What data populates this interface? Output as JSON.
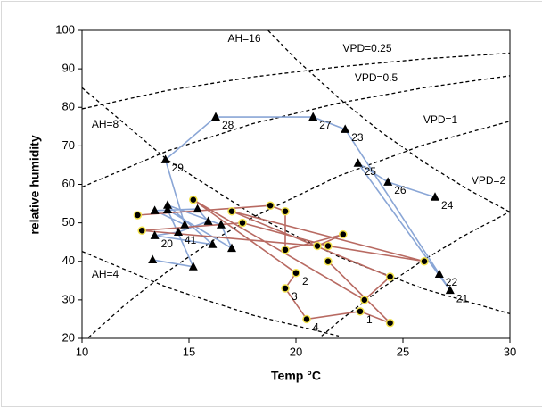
{
  "chart_data": {
    "type": "scatter",
    "x_label": "Temp °C",
    "y_label": "relative humidity",
    "xlim": [
      10,
      30
    ],
    "xticks": [
      10,
      15,
      20,
      25,
      30
    ],
    "ylim": [
      20,
      100
    ],
    "yticks": [
      20,
      30,
      40,
      50,
      60,
      70,
      80,
      90,
      100
    ],
    "grid": false,
    "curves": [
      {
        "name": "AH=16",
        "x": [
          18.7,
          20,
          22,
          24,
          26,
          28,
          30
        ],
        "values": [
          99.96,
          92.5,
          82.4,
          73.5,
          65.7,
          58.8,
          52.8
        ]
      },
      {
        "name": "VPD=0.25",
        "x": [
          10,
          14,
          18,
          22,
          26,
          30
        ],
        "values": [
          79.6,
          84.4,
          87.9,
          90.5,
          92.6,
          94.1
        ]
      },
      {
        "name": "VPD=0.5",
        "x": [
          10,
          14,
          18,
          22,
          26,
          30
        ],
        "values": [
          59.3,
          68.7,
          75.8,
          81.1,
          85.1,
          88.2
        ]
      },
      {
        "name": "AH=8",
        "x": [
          10,
          14,
          18,
          22,
          26,
          30
        ],
        "values": [
          85.1,
          66.3,
          52.1,
          41.2,
          32.8,
          26.4
        ]
      },
      {
        "name": "VPD=1",
        "x": [
          10.3,
          12,
          14,
          16,
          18,
          22,
          26,
          30
        ],
        "values": [
          20.2,
          28.7,
          37.4,
          45,
          51.5,
          62.2,
          70.3,
          76.4
        ]
      },
      {
        "name": "VPD=2",
        "x": [
          21.2,
          22,
          24,
          26,
          28,
          30
        ],
        "values": [
          20.6,
          24.4,
          33,
          40.5,
          47.1,
          52.9
        ]
      },
      {
        "name": "AH=4",
        "x": [
          10,
          14,
          18,
          22
        ],
        "values": [
          42.6,
          33.2,
          26,
          20.6
        ]
      }
    ],
    "series": [
      {
        "color": "#8aa6d6",
        "marker": "triangle",
        "marker_color": "#000000",
        "x": [
          13.3,
          15.2,
          14.0,
          17.0,
          16.5,
          14.0,
          16.1,
          13.4,
          14.5,
          15.9,
          15.4,
          13.4,
          14.8,
          13.9,
          16.25,
          20.8,
          22.3,
          26.7,
          27.2,
          22.9,
          24.3,
          26.5
        ],
        "values": [
          40.4,
          38.6,
          53.4,
          43.4,
          49.5,
          54.6,
          44.4,
          46.7,
          47.6,
          50.4,
          53.6,
          53.2,
          49.5,
          66.4,
          77.5,
          77.5,
          74.3,
          36.7,
          32.5,
          65.5,
          60.6,
          56.7
        ],
        "point_labels": [
          null,
          null,
          null,
          null,
          null,
          null,
          null,
          "20",
          "41",
          null,
          null,
          null,
          null,
          "29",
          "28",
          "27",
          "23",
          "22",
          "21",
          "25",
          "26",
          "24"
        ]
      },
      {
        "color": "#b86a62",
        "marker": "circle",
        "marker_color": "#000000",
        "marker_edge": "#f2e24a",
        "x": [
          12.6,
          18.8,
          19.5,
          19.5,
          22.2,
          21.0,
          12.8,
          17.5,
          21.5,
          26.0,
          17.0,
          24.4,
          23.2,
          15.2,
          20.0,
          19.5,
          20.5,
          23.0,
          24.4,
          21.5
        ],
        "values": [
          52,
          54.5,
          53,
          43,
          47,
          44,
          48,
          50,
          44,
          40,
          53,
          36,
          30,
          56,
          37,
          33,
          25,
          27,
          24,
          40
        ],
        "point_labels": [
          null,
          null,
          null,
          null,
          null,
          null,
          null,
          null,
          null,
          null,
          null,
          null,
          null,
          null,
          "2",
          "3",
          "4",
          "1",
          null,
          null
        ]
      }
    ]
  }
}
